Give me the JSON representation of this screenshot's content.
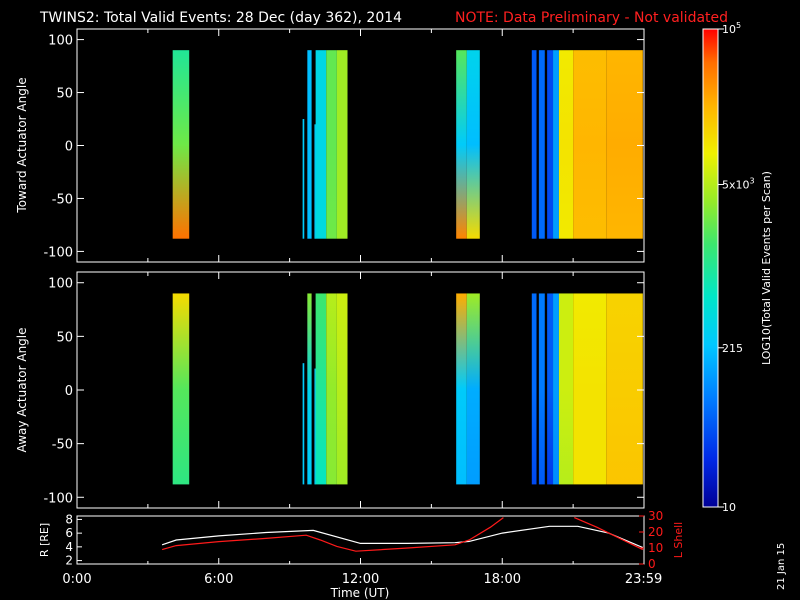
{
  "header": {
    "title": "TWINS2: Total Valid Events: 28 Dec (day 362), 2014",
    "note": "NOTE: Data Preliminary - Not validated"
  },
  "footer": {
    "date_stamp": "21 Jan 15"
  },
  "colorbar": {
    "label": "LOG10(Total Valid Events per Scan)",
    "scale": "log",
    "range": [
      10,
      100000
    ],
    "ticks": [
      {
        "value": 10,
        "label": "10"
      },
      {
        "value": 215,
        "label": "215"
      },
      {
        "value": 5000,
        "label": "5x10^3"
      },
      {
        "value": 100000,
        "label": "10^5"
      }
    ]
  },
  "colors": {
    "background": "#000000",
    "title": "#ffffff",
    "note": "#ff2020",
    "r_line": "#ffffff",
    "lshell_line": "#ff1a1a"
  },
  "chart_data": [
    {
      "type": "heatmap",
      "panel": "toward",
      "ylabel": "Toward Actuator Angle",
      "xlim": [
        0,
        24
      ],
      "ylim": [
        -110,
        110
      ],
      "yticks": [
        100,
        50,
        0,
        -50,
        -100
      ],
      "angle_range": [
        -88,
        90
      ],
      "blocks": [
        {
          "t0": 4.05,
          "t1": 4.75,
          "log_top": 3.0,
          "log_mid": 3.4,
          "log_bot": 4.7
        },
        {
          "t0": 9.55,
          "t1": 9.62,
          "y0": -88,
          "y1": 25,
          "log_top": 2.4,
          "log_mid": 2.4,
          "log_bot": 2.4
        },
        {
          "t0": 9.75,
          "t1": 9.93,
          "log_top": 2.3,
          "log_mid": 2.3,
          "log_bot": 2.3
        },
        {
          "t0": 10.05,
          "t1": 10.1,
          "y0": -88,
          "y1": 20,
          "log_top": 2.4,
          "log_mid": 2.4,
          "log_bot": 2.4
        },
        {
          "t0": 10.1,
          "t1": 10.55,
          "log_top": 2.55,
          "log_mid": 2.55,
          "log_bot": 2.6
        },
        {
          "t0": 10.55,
          "t1": 11.0,
          "log_top": 3.35,
          "log_mid": 3.35,
          "log_bot": 3.4
        },
        {
          "t0": 11.0,
          "t1": 11.45,
          "log_top": 3.6,
          "log_mid": 3.6,
          "log_bot": 3.6
        },
        {
          "t0": 16.05,
          "t1": 16.5,
          "log_top": 3.3,
          "log_mid": 2.4,
          "log_bot": 4.6
        },
        {
          "t0": 16.5,
          "t1": 17.05,
          "log_top": 2.5,
          "log_mid": 2.3,
          "log_bot": 4.1
        },
        {
          "t0": 19.25,
          "t1": 19.45,
          "log_top": 1.7,
          "log_mid": 1.7,
          "log_bot": 1.7
        },
        {
          "t0": 19.55,
          "t1": 19.8,
          "log_top": 1.8,
          "log_mid": 1.8,
          "log_bot": 1.8
        },
        {
          "t0": 19.9,
          "t1": 20.15,
          "log_top": 1.6,
          "log_mid": 1.6,
          "log_bot": 1.6
        },
        {
          "t0": 20.15,
          "t1": 20.4,
          "log_top": 2.1,
          "log_mid": 2.1,
          "log_bot": 2.1
        },
        {
          "t0": 20.4,
          "t1": 21.0,
          "log_top": 4.0,
          "log_mid": 4.05,
          "log_bot": 4.0
        },
        {
          "t0": 21.0,
          "t1": 22.4,
          "log_top": 4.3,
          "log_mid": 4.35,
          "log_bot": 4.3
        },
        {
          "t0": 22.4,
          "t1": 23.95,
          "log_top": 4.35,
          "log_mid": 4.4,
          "log_bot": 4.35
        }
      ]
    },
    {
      "type": "heatmap",
      "panel": "away",
      "ylabel": "Away Actuator Angle",
      "xlim": [
        0,
        24
      ],
      "ylim": [
        -110,
        110
      ],
      "yticks": [
        100,
        50,
        0,
        -50,
        -100
      ],
      "angle_range": [
        -88,
        90
      ],
      "blocks": [
        {
          "t0": 4.05,
          "t1": 4.75,
          "log_top": 4.1,
          "log_mid": 3.3,
          "log_bot": 3.1
        },
        {
          "t0": 9.55,
          "t1": 9.62,
          "y0": -88,
          "y1": 25,
          "log_top": 2.4,
          "log_mid": 2.4,
          "log_bot": 2.4
        },
        {
          "t0": 9.75,
          "t1": 9.93,
          "log_top": 3.5,
          "log_mid": 2.5,
          "log_bot": 2.4
        },
        {
          "t0": 10.05,
          "t1": 10.1,
          "y0": -88,
          "y1": 20,
          "log_top": 2.4,
          "log_mid": 2.4,
          "log_bot": 2.4
        },
        {
          "t0": 10.1,
          "t1": 10.55,
          "log_top": 3.2,
          "log_mid": 3.0,
          "log_bot": 2.8
        },
        {
          "t0": 10.55,
          "t1": 11.0,
          "log_top": 3.7,
          "log_mid": 3.55,
          "log_bot": 3.5
        },
        {
          "t0": 11.0,
          "t1": 11.45,
          "log_top": 3.8,
          "log_mid": 3.7,
          "log_bot": 3.6
        },
        {
          "t0": 16.05,
          "t1": 16.5,
          "log_top": 4.4,
          "log_mid": 2.4,
          "log_bot": 2.3
        },
        {
          "t0": 16.5,
          "t1": 17.05,
          "log_top": 3.6,
          "log_mid": 2.2,
          "log_bot": 2.1
        },
        {
          "t0": 19.25,
          "t1": 19.45,
          "log_top": 1.8,
          "log_mid": 1.8,
          "log_bot": 1.6
        },
        {
          "t0": 19.55,
          "t1": 19.8,
          "log_top": 1.9,
          "log_mid": 1.9,
          "log_bot": 1.7
        },
        {
          "t0": 19.9,
          "t1": 20.15,
          "log_top": 1.7,
          "log_mid": 1.7,
          "log_bot": 1.5
        },
        {
          "t0": 20.15,
          "t1": 20.4,
          "log_top": 2.1,
          "log_mid": 2.1,
          "log_bot": 2.0
        },
        {
          "t0": 20.4,
          "t1": 21.0,
          "log_top": 3.8,
          "log_mid": 3.8,
          "log_bot": 3.7
        },
        {
          "t0": 21.0,
          "t1": 22.4,
          "log_top": 4.0,
          "log_mid": 4.05,
          "log_bot": 4.05
        },
        {
          "t0": 22.4,
          "t1": 23.95,
          "log_top": 4.15,
          "log_mid": 4.2,
          "log_bot": 4.25
        }
      ]
    },
    {
      "type": "line",
      "panel": "orbit",
      "xlabel": "Time (UT)",
      "xlim": [
        0,
        24
      ],
      "xticks": [
        {
          "value": 0,
          "label": "0:00"
        },
        {
          "value": 6,
          "label": "6:00"
        },
        {
          "value": 12,
          "label": "12:00"
        },
        {
          "value": 18,
          "label": "18:00"
        },
        {
          "value": 23.983,
          "label": "23:59"
        }
      ],
      "y_left": {
        "label": "R [RE]",
        "range": [
          1.5,
          8.5
        ],
        "ticks": [
          2,
          4,
          6,
          8
        ]
      },
      "y_right": {
        "label": "L Shell",
        "range": [
          0,
          30
        ],
        "ticks": [
          0,
          10,
          20,
          30
        ]
      },
      "series": [
        {
          "name": "R",
          "axis": "left",
          "x": [
            3.6,
            4.2,
            6.0,
            8.0,
            10.0,
            12.0,
            14.0,
            16.0,
            16.6,
            18.0,
            20.0,
            21.2,
            22.5,
            23.95
          ],
          "y": [
            4.3,
            5.0,
            5.6,
            6.1,
            6.4,
            4.5,
            4.5,
            4.6,
            4.8,
            6.0,
            7.0,
            7.0,
            6.0,
            3.9
          ]
        },
        {
          "name": "L Shell",
          "axis": "right",
          "x": [
            3.6,
            4.2,
            6.0,
            8.0,
            9.7,
            10.3,
            11.0,
            11.8,
            14.0,
            16.0,
            16.6,
            17.5,
            18.05,
            18.15,
            20.95,
            21.05,
            22.0,
            23.95
          ],
          "y": [
            9,
            11.5,
            14,
            16,
            18,
            15,
            11,
            8,
            10,
            12,
            15,
            23,
            29,
            null,
            null,
            29,
            23,
            9
          ]
        }
      ]
    }
  ]
}
